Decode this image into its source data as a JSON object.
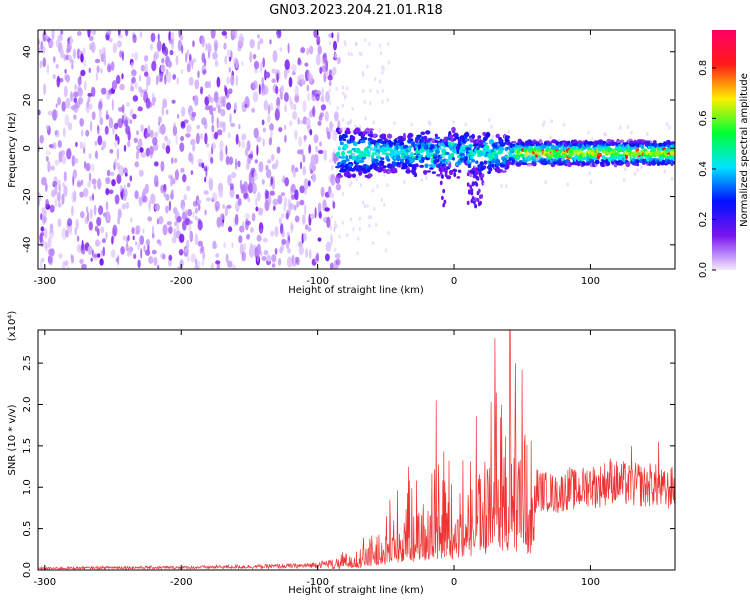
{
  "figure": {
    "title": "GN03.2023.204.21.01.R18"
  },
  "chart_data": [
    {
      "type": "heatmap",
      "xlabel": "Height of straight line (km)",
      "ylabel": "Frequency (Hz)",
      "xlim": [
        -305,
        162
      ],
      "ylim": [
        -50,
        49
      ],
      "xticks": [
        -300,
        -200,
        -100,
        0,
        100
      ],
      "yticks": [
        -40,
        -20,
        0,
        20,
        40
      ],
      "grid": false,
      "colorbar": {
        "label": "Normalized spectral amplitude",
        "range": [
          0.0,
          0.95
        ],
        "ticks": [
          "0.0",
          "0.2",
          "0.4",
          "0.6",
          "0.8"
        ],
        "colors": [
          "#f2eaff",
          "#7a14f0",
          "#0010ff",
          "#00e5ff",
          "#00ff33",
          "#ffee00",
          "#ff1a1a",
          "#ff0066"
        ]
      },
      "regions": [
        {
          "x_range": [
            -305,
            -85
          ],
          "y_range": [
            -50,
            49
          ],
          "amplitude_range": [
            0.0,
            0.15
          ]
        },
        {
          "x_range": [
            -85,
            162
          ],
          "center_frequency": -2,
          "band_halfwidth": 7,
          "amplitude_range": [
            0.1,
            0.9
          ]
        }
      ]
    },
    {
      "type": "line",
      "xlabel": "Height of straight line (km)",
      "ylabel": "SNR (10 * v/v)",
      "y_multiplier": "(x10⁴)",
      "xlim": [
        -305,
        162
      ],
      "ylim": [
        0,
        2.9
      ],
      "xticks": [
        -300,
        -200,
        -100,
        0,
        100
      ],
      "yticks": [
        "0.0",
        "0.5",
        "1.0",
        "1.5",
        "2.0",
        "2.5"
      ],
      "series": [
        {
          "color": "#ee3333",
          "x": [
            -300,
            -250,
            -200,
            -150,
            -110,
            -90,
            -75,
            -65,
            -55,
            -50,
            -45,
            -40,
            -35,
            -30,
            -25,
            -20,
            -15,
            -10,
            -5,
            0,
            5,
            10,
            15,
            20,
            25,
            30,
            35,
            40,
            45,
            50,
            55,
            60,
            65,
            70,
            75,
            80,
            85,
            90,
            95,
            100,
            105,
            110,
            115,
            120,
            125,
            130,
            135,
            140,
            145,
            150,
            155,
            160
          ],
          "values": [
            0.02,
            0.03,
            0.03,
            0.04,
            0.05,
            0.08,
            0.15,
            0.25,
            0.3,
            0.45,
            0.5,
            0.55,
            0.65,
            0.6,
            0.7,
            0.75,
            0.8,
            0.9,
            0.85,
            0.9,
            0.95,
            1.0,
            1.05,
            1.1,
            1.2,
            1.35,
            1.5,
            1.6,
            1.45,
            1.3,
            1.1,
            1.05,
            1.0,
            1.0,
            0.95,
            1.0,
            1.05,
            1.0,
            1.05,
            1.1,
            1.05,
            1.1,
            1.15,
            1.1,
            1.1,
            1.05,
            1.1,
            1.05,
            1.1,
            1.05,
            1.0,
            1.05
          ],
          "peaks": [
            {
              "x": -47,
              "y": 0.85
            },
            {
              "x": -13,
              "y": 2.05
            },
            {
              "x": 30,
              "y": 2.8
            },
            {
              "x": 41,
              "y": 2.9
            },
            {
              "x": 45,
              "y": 2.5
            },
            {
              "x": 130,
              "y": 1.5
            },
            {
              "x": 150,
              "y": 1.55
            }
          ]
        }
      ]
    }
  ]
}
